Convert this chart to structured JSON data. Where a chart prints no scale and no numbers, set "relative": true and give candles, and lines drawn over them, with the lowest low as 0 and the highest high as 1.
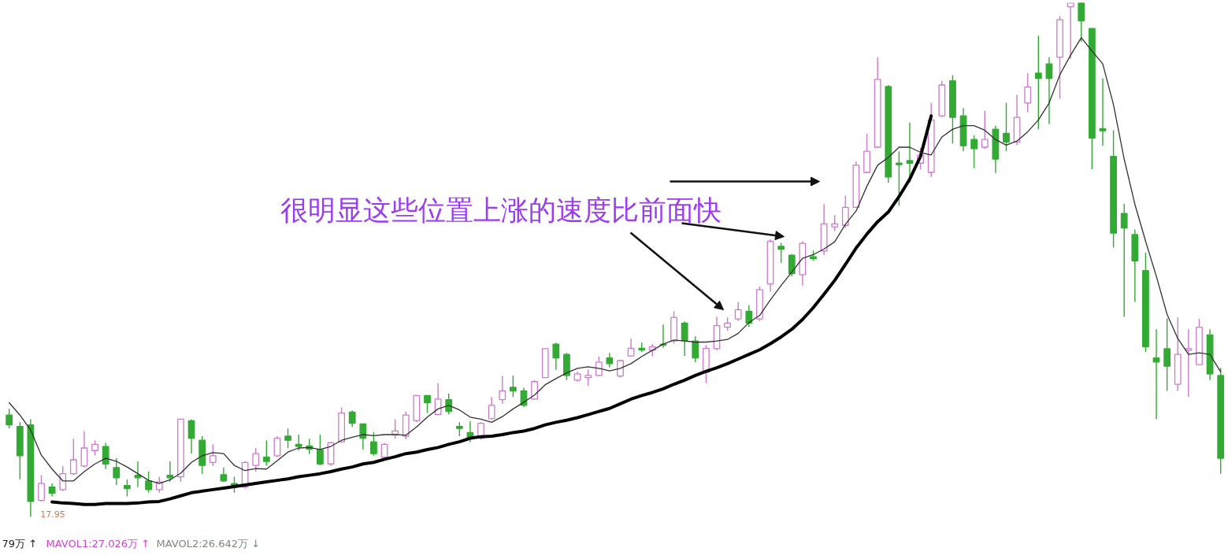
{
  "chart_data": {
    "type": "candlestick",
    "relative": true,
    "tick_labels": false,
    "categories": [
      null,
      null,
      null,
      null,
      null,
      null,
      null,
      null,
      null,
      null,
      null,
      null,
      null,
      null,
      null,
      null,
      null,
      null,
      null,
      null,
      null,
      null,
      null,
      null,
      null,
      null,
      null,
      null,
      null,
      null,
      null,
      null,
      null,
      null,
      null,
      null,
      null,
      null,
      null,
      null,
      null,
      null,
      null,
      null,
      null,
      null,
      null,
      null,
      null,
      null,
      null,
      null,
      null,
      null,
      null,
      null,
      null,
      null,
      null,
      null,
      null,
      null,
      null,
      null,
      null,
      null,
      null,
      null,
      null,
      null,
      null,
      null,
      null,
      null,
      null,
      null,
      null,
      null,
      null,
      null,
      null,
      null,
      null,
      null,
      null,
      null,
      null,
      null,
      null,
      null,
      null,
      null,
      null,
      null,
      null,
      null,
      null,
      null,
      null,
      null,
      null,
      null,
      null,
      null,
      null,
      null,
      null,
      null,
      null,
      null,
      null,
      null,
      null,
      null
    ],
    "ohlc": [
      [
        0.198,
        0.21,
        0.172,
        0.179
      ],
      [
        0.176,
        0.184,
        0.073,
        0.119
      ],
      [
        0.179,
        0.19,
        0,
        0.03
      ],
      [
        0.032,
        0.081,
        0.03,
        0.065
      ],
      [
        0.058,
        0.065,
        0.04,
        0.046
      ],
      [
        0.053,
        0.099,
        0.05,
        0.084
      ],
      [
        0.084,
        0.152,
        0.081,
        0.111
      ],
      [
        0.099,
        0.167,
        0.096,
        0.134
      ],
      [
        0.129,
        0.149,
        0.119,
        0.141
      ],
      [
        0.137,
        0.144,
        0.093,
        0.103
      ],
      [
        0.096,
        0.114,
        0.062,
        0.076
      ],
      [
        0.061,
        0.073,
        0.04,
        0.055
      ],
      [
        0.081,
        0.108,
        0.058,
        0.076
      ],
      [
        0.07,
        0.088,
        0.047,
        0.053
      ],
      [
        0.053,
        0.078,
        0.047,
        0.068
      ],
      [
        0.081,
        0.108,
        0.068,
        0.076
      ],
      [
        0.078,
        0.19,
        0.068,
        0.19
      ],
      [
        0.187,
        0.19,
        0.123,
        0.153
      ],
      [
        0.149,
        0.157,
        0.084,
        0.1
      ],
      [
        0.106,
        0.141,
        0.099,
        0.119
      ],
      [
        0.082,
        0.096,
        0.068,
        0.07
      ],
      [
        0.065,
        0.078,
        0.047,
        0.061
      ],
      [
        0.058,
        0.108,
        0.055,
        0.106
      ],
      [
        0.1,
        0.134,
        0.088,
        0.123
      ],
      [
        0.116,
        0.149,
        0.1,
        0.108
      ],
      [
        0.119,
        0.157,
        0.116,
        0.153
      ],
      [
        0.157,
        0.172,
        0.134,
        0.149
      ],
      [
        0.141,
        0.16,
        0.129,
        0.137
      ],
      [
        0.138,
        0.152,
        0.122,
        0.132
      ],
      [
        0.131,
        0.16,
        0.1,
        0.103
      ],
      [
        0.103,
        0.146,
        0.099,
        0.144
      ],
      [
        0.146,
        0.213,
        0.144,
        0.202
      ],
      [
        0.204,
        0.207,
        0.175,
        0.182
      ],
      [
        0.181,
        0.182,
        0.131,
        0.153
      ],
      [
        0.146,
        0.165,
        0.119,
        0.123
      ],
      [
        0.116,
        0.144,
        0.114,
        0.141
      ],
      [
        0.16,
        0.19,
        0.152,
        0.167
      ],
      [
        0.157,
        0.205,
        0.151,
        0.198
      ],
      [
        0.187,
        0.237,
        0.184,
        0.236
      ],
      [
        0.236,
        0.237,
        0.202,
        0.222
      ],
      [
        0.199,
        0.26,
        0.198,
        0.229
      ],
      [
        0.228,
        0.24,
        0.199,
        0.205
      ],
      [
        0.176,
        0.184,
        0.157,
        0.172
      ],
      [
        0.164,
        0.186,
        0.145,
        0.152
      ],
      [
        0.153,
        0.184,
        0.15,
        0.182
      ],
      [
        0.191,
        0.233,
        0.19,
        0.217
      ],
      [
        0.228,
        0.274,
        0.22,
        0.245
      ],
      [
        0.252,
        0.275,
        0.233,
        0.245
      ],
      [
        0.245,
        0.251,
        0.214,
        0.217
      ],
      [
        0.229,
        0.266,
        0.228,
        0.263
      ],
      [
        0.271,
        0.328,
        0.271,
        0.327
      ],
      [
        0.336,
        0.339,
        0.286,
        0.309
      ],
      [
        0.316,
        0.319,
        0.266,
        0.275
      ],
      [
        0.266,
        0.283,
        0.263,
        0.278
      ],
      [
        0.271,
        0.286,
        0.255,
        0.275
      ],
      [
        0.275,
        0.312,
        0.274,
        0.301
      ],
      [
        0.309,
        0.319,
        0.291,
        0.298
      ],
      [
        0.274,
        0.305,
        0.271,
        0.304
      ],
      [
        0.313,
        0.347,
        0.312,
        0.328
      ],
      [
        0.328,
        0.339,
        0.321,
        0.325
      ],
      [
        0.324,
        0.336,
        0.312,
        0.331
      ],
      [
        0.336,
        0.374,
        0.329,
        0.334
      ],
      [
        0.342,
        0.4,
        0.337,
        0.388
      ],
      [
        0.377,
        0.38,
        0.313,
        0.343
      ],
      [
        0.342,
        0.351,
        0.301,
        0.309
      ],
      [
        0.281,
        0.334,
        0.26,
        0.328
      ],
      [
        0.327,
        0.389,
        0.324,
        0.372
      ],
      [
        0.369,
        0.388,
        0.362,
        0.377
      ],
      [
        0.385,
        0.418,
        0.381,
        0.403
      ],
      [
        0.4,
        0.412,
        0.37,
        0.377
      ],
      [
        0.385,
        0.448,
        0.381,
        0.442
      ],
      [
        0.453,
        0.54,
        0.438,
        0.536
      ],
      [
        0.526,
        0.533,
        0.494,
        0.521
      ],
      [
        0.509,
        0.511,
        0.468,
        0.473
      ],
      [
        0.471,
        0.536,
        0.45,
        0.532
      ],
      [
        0.506,
        0.518,
        0.498,
        0.502
      ],
      [
        0.517,
        0.608,
        0.509,
        0.57
      ],
      [
        0.564,
        0.587,
        0.556,
        0.57
      ],
      [
        0.567,
        0.625,
        0.562,
        0.602
      ],
      [
        0.602,
        0.691,
        0.602,
        0.684
      ],
      [
        0.67,
        0.745,
        0.669,
        0.711
      ],
      [
        0.719,
        0.894,
        0.719,
        0.851
      ],
      [
        0.837,
        0.84,
        0.65,
        0.661
      ],
      [
        0.688,
        0.711,
        0.605,
        0.685
      ],
      [
        0.693,
        0.767,
        0.65,
        0.688
      ],
      [
        0.688,
        0.718,
        0.676,
        0.704
      ],
      [
        0.67,
        0.805,
        0.661,
        0.772
      ],
      [
        0.78,
        0.848,
        0.777,
        0.84
      ],
      [
        0.848,
        0.859,
        0.726,
        0.777
      ],
      [
        0.78,
        0.795,
        0.711,
        0.722
      ],
      [
        0.734,
        0.742,
        0.678,
        0.716
      ],
      [
        0.719,
        0.79,
        0.716,
        0.734
      ],
      [
        0.754,
        0.761,
        0.669,
        0.696
      ],
      [
        0.746,
        0.805,
        0.711,
        0.729
      ],
      [
        0.729,
        0.821,
        0.723,
        0.777
      ],
      [
        0.805,
        0.863,
        0.787,
        0.836
      ],
      [
        0.863,
        0.936,
        0.754,
        0.853
      ],
      [
        0.881,
        0.894,
        0.764,
        0.853
      ],
      [
        0.894,
        0.974,
        0.813,
        0.967
      ],
      [
        0.992,
        1,
        0.891,
        1
      ],
      [
        1,
        1,
        0.924,
        0.965
      ],
      [
        0.95,
        0.95,
        0.676,
        0.737
      ],
      [
        0.755,
        0.853,
        0.722,
        0.751
      ],
      [
        0.701,
        0.752,
        0.524,
        0.552
      ],
      [
        0.59,
        0.609,
        0.389,
        0.562
      ],
      [
        0.549,
        0.559,
        0.418,
        0.498
      ],
      [
        0.479,
        0.514,
        0.321,
        0.331
      ],
      [
        0.309,
        0.365,
        0.19,
        0.301
      ],
      [
        0.327,
        0.386,
        0.245,
        0.293
      ],
      [
        0.258,
        0.388,
        0.245,
        0.316
      ],
      [
        0.324,
        0.365,
        0.233,
        0.327
      ],
      [
        0.296,
        0.385,
        0.296,
        0.369
      ],
      [
        0.354,
        0.365,
        0.266,
        0.278
      ],
      [
        0.275,
        0.29,
        0.084,
        0.114
      ]
    ],
    "colors": [
      "#33aa33",
      "#33aa33",
      "#33aa33",
      "#cc7acc",
      "#33aa33",
      "#cc7acc",
      "#cc7acc",
      "#cc7acc",
      "#cc7acc",
      "#33aa33",
      "#33aa33",
      "#33aa33",
      "#33aa33",
      "#33aa33",
      "#cc7acc",
      "#33aa33",
      "#cc7acc",
      "#33aa33",
      "#33aa33",
      "#cc7acc",
      "#33aa33",
      "#33aa33",
      "#cc7acc",
      "#cc7acc",
      "#33aa33",
      "#cc7acc",
      "#33aa33",
      "#33aa33",
      "#33aa33",
      "#33aa33",
      "#cc7acc",
      "#cc7acc",
      "#33aa33",
      "#33aa33",
      "#33aa33",
      "#cc7acc",
      "#cc7acc",
      "#cc7acc",
      "#cc7acc",
      "#33aa33",
      "#cc7acc",
      "#33aa33",
      "#33aa33",
      "#33aa33",
      "#cc7acc",
      "#cc7acc",
      "#cc7acc",
      "#33aa33",
      "#33aa33",
      "#cc7acc",
      "#cc7acc",
      "#33aa33",
      "#33aa33",
      "#cc7acc",
      "#cc7acc",
      "#cc7acc",
      "#33aa33",
      "#cc7acc",
      "#cc7acc",
      "#33aa33",
      "#cc7acc",
      "#33aa33",
      "#cc7acc",
      "#33aa33",
      "#33aa33",
      "#cc7acc",
      "#cc7acc",
      "#cc7acc",
      "#cc7acc",
      "#33aa33",
      "#cc7acc",
      "#cc7acc",
      "#33aa33",
      "#33aa33",
      "#cc7acc",
      "#33aa33",
      "#cc7acc",
      "#cc7acc",
      "#cc7acc",
      "#cc7acc",
      "#cc7acc",
      "#cc7acc",
      "#33aa33",
      "#33aa33",
      "#33aa33",
      "#cc7acc",
      "#cc7acc",
      "#cc7acc",
      "#33aa33",
      "#33aa33",
      "#33aa33",
      "#cc7acc",
      "#33aa33",
      "#33aa33",
      "#cc7acc",
      "#cc7acc",
      "#33aa33",
      "#33aa33",
      "#cc7acc",
      "#cc7acc",
      "#33aa33",
      "#33aa33",
      "#33aa33",
      "#33aa33",
      "#33aa33",
      "#33aa33",
      "#33aa33",
      "#33aa33",
      "#33aa33",
      "#cc7acc",
      "#cc7acc",
      "#cc7acc",
      "#33aa33",
      "#33aa33"
    ],
    "series": [
      {
        "type": "line",
        "color": "#333333",
        "values": [
          0.222,
          0.198,
          0.169,
          0.12,
          0.093,
          0.07,
          0.07,
          0.088,
          0.103,
          0.114,
          0.108,
          0.097,
          0.084,
          0.071,
          0.065,
          0.072,
          0.085,
          0.106,
          0.119,
          0.125,
          0.123,
          0.1,
          0.09,
          0.094,
          0.093,
          0.109,
          0.126,
          0.134,
          0.135,
          0.131,
          0.137,
          0.149,
          0.155,
          0.16,
          0.158,
          0.16,
          0.16,
          0.159,
          0.175,
          0.194,
          0.21,
          0.217,
          0.208,
          0.194,
          0.19,
          0.184,
          0.195,
          0.21,
          0.223,
          0.237,
          0.257,
          0.269,
          0.28,
          0.289,
          0.292,
          0.289,
          0.284,
          0.289,
          0.298,
          0.312,
          0.324,
          0.336,
          0.344,
          0.342,
          0.34,
          0.34,
          0.342,
          0.345,
          0.357,
          0.378,
          0.392,
          0.422,
          0.45,
          0.476,
          0.503,
          0.51,
          0.521,
          0.535,
          0.569,
          0.595,
          0.643,
          0.684,
          0.699,
          0.719,
          0.719,
          0.709,
          0.704,
          0.739,
          0.754,
          0.761,
          0.761,
          0.752,
          0.734,
          0.723,
          0.731,
          0.749,
          0.772,
          0.805,
          0.86,
          0.898,
          0.932,
          0.906,
          0.881,
          0.802,
          0.696,
          0.608,
          0.536,
          0.468,
          0.394,
          0.347,
          0.316,
          0.319,
          0.316,
          0.282
        ]
      },
      {
        "type": "line",
        "color": "#000000",
        "values": [
          null,
          null,
          null,
          null,
          0.029,
          0.027,
          0.026,
          0.024,
          0.024,
          0.026,
          0.026,
          0.026,
          0.027,
          0.029,
          0.03,
          0.035,
          0.041,
          0.047,
          0.05,
          0.053,
          0.056,
          0.059,
          0.062,
          0.065,
          0.068,
          0.071,
          0.074,
          0.078,
          0.081,
          0.084,
          0.088,
          0.093,
          0.097,
          0.103,
          0.106,
          0.112,
          0.117,
          0.123,
          0.126,
          0.131,
          0.135,
          0.141,
          0.146,
          0.153,
          0.156,
          0.157,
          0.16,
          0.164,
          0.167,
          0.172,
          0.179,
          0.184,
          0.188,
          0.193,
          0.199,
          0.205,
          0.211,
          0.22,
          0.229,
          0.236,
          0.242,
          0.249,
          0.258,
          0.266,
          0.275,
          0.283,
          0.29,
          0.298,
          0.307,
          0.316,
          0.325,
          0.337,
          0.35,
          0.365,
          0.384,
          0.407,
          0.433,
          0.46,
          0.491,
          0.523,
          0.55,
          0.574,
          0.593,
          0.623,
          0.657,
          0.701,
          0.78,
          null,
          null,
          null,
          null,
          null,
          null,
          null,
          null,
          null,
          null,
          null,
          null,
          null,
          null,
          null,
          null,
          null,
          null,
          null,
          null,
          null,
          null,
          null,
          null,
          null,
          null,
          null
        ]
      }
    ],
    "annotations": [
      "很明显这些位置上涨的速度比前面快",
      {
        "text": "17.95"
      },
      "79万 ↑",
      "MAVOL1:27.026万 ↑",
      "MAVOL2:26.642万 ↓"
    ]
  }
}
